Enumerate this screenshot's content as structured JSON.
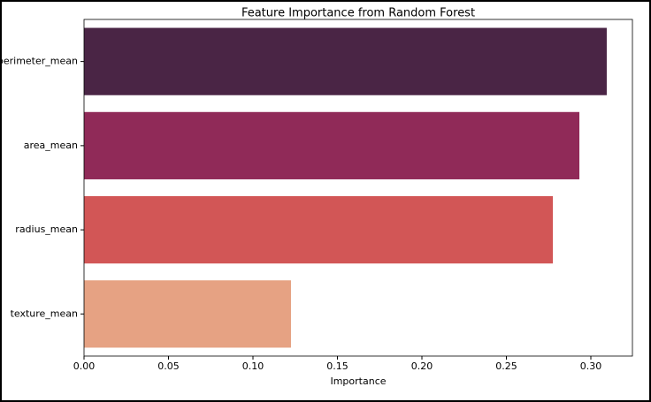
{
  "chart_data": {
    "type": "barh",
    "title": "Feature Importance from Random Forest",
    "xlabel": "Importance",
    "categories": [
      "perimeter_mean",
      "area_mean",
      "radius_mean",
      "texture_mean"
    ],
    "values": [
      0.3094,
      0.2932,
      0.2775,
      0.1225
    ],
    "colors": [
      "#4a2545",
      "#902a58",
      "#d25656",
      "#e6a283"
    ],
    "xlim": [
      0,
      0.3246
    ],
    "xticks": [
      {
        "value": 0,
        "label": "0.00"
      },
      0.05,
      {
        "value": 0.1,
        "label": "0.10"
      },
      0.15,
      {
        "value": 0.2,
        "label": "0.20"
      },
      0.25,
      {
        "value": 0.3,
        "label": "0.30"
      }
    ]
  }
}
